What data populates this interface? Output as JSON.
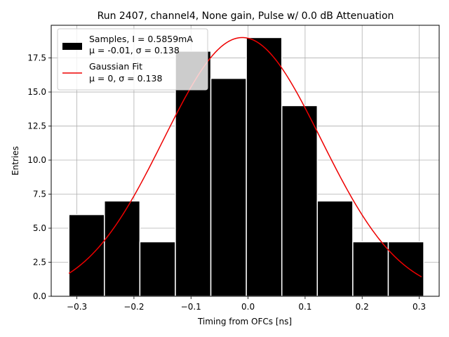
{
  "chart_data": {
    "type": "histogram",
    "title": "Run 2407, channel4, None gain, Pulse w/ 0.0 dB Attenuation",
    "xlabel": "Timing from OFCs [ns]",
    "ylabel": "Entries",
    "xlim": [
      -0.345,
      0.335
    ],
    "ylim": [
      0,
      19.9
    ],
    "grid": true,
    "legend_position": "top-left",
    "xticks": [
      -0.3,
      -0.2,
      -0.1,
      0.0,
      0.1,
      0.2,
      0.3
    ],
    "xtick_labels": [
      "−0.3",
      "−0.2",
      "−0.1",
      "0.0",
      "0.1",
      "0.2",
      "0.3"
    ],
    "yticks": [
      0,
      2.5,
      5,
      7.5,
      10,
      12.5,
      15,
      17.5
    ],
    "ytick_labels": [
      "0.0",
      "2.5",
      "5.0",
      "7.5",
      "10.0",
      "12.5",
      "15.0",
      "17.5"
    ],
    "histogram": {
      "name": "Samples, I = 0.5859mA",
      "stats_label": "μ = -0.01, σ = 0.138",
      "color": "#000000",
      "edgecolor": "#ffffff",
      "bin_edges": [
        -0.314,
        -0.2518,
        -0.1896,
        -0.1274,
        -0.0652,
        -0.003,
        0.0592,
        0.1214,
        0.1836,
        0.2458,
        0.308
      ],
      "counts": [
        6,
        7,
        4,
        18,
        16,
        19,
        14,
        7,
        4,
        4
      ]
    },
    "fit": {
      "name": "Gaussian Fit",
      "stats_label": "μ = 0, σ = 0.138",
      "type": "gaussian",
      "color": "#ee0000",
      "amplitude": 19.0,
      "mean": -0.01,
      "sigma": 0.138,
      "x_range": [
        -0.314,
        0.304
      ]
    }
  }
}
